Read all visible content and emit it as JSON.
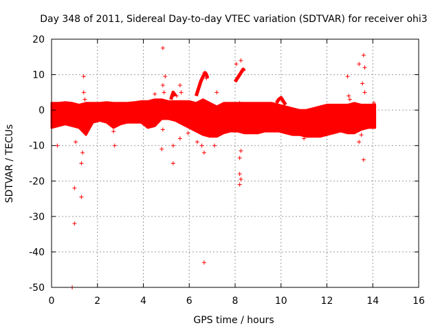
{
  "chart_data": {
    "type": "scatter",
    "title": "Day 348 of 2011, Sidereal Day-to-day VTEC variation (SDTVAR) for receiver ohi3",
    "xlabel": "GPS time / hours",
    "ylabel": "SDTVAR / TECUs",
    "xlim": [
      0,
      16
    ],
    "ylim": [
      -50,
      20
    ],
    "xticks": [
      0,
      2,
      4,
      6,
      8,
      10,
      12,
      14,
      16
    ],
    "yticks": [
      -50,
      -40,
      -30,
      -20,
      -10,
      0,
      10,
      20
    ],
    "grid": true,
    "marker": "+",
    "series_color": "#ff0000",
    "band_x": [
      0.0,
      0.3,
      0.6,
      0.9,
      1.2,
      1.5,
      1.8,
      2.1,
      2.4,
      2.7,
      3.0,
      3.3,
      3.6,
      3.9,
      4.2,
      4.5,
      4.8,
      5.1,
      5.4,
      5.7,
      6.0,
      6.3,
      6.6,
      6.9,
      7.2,
      7.5,
      7.8,
      8.1,
      8.4,
      8.7,
      9.0,
      9.3,
      9.6,
      9.9,
      10.2,
      10.5,
      10.8,
      11.1,
      11.4,
      11.7,
      12.0,
      12.3,
      12.6,
      12.9,
      13.2,
      13.5,
      13.8,
      14.1
    ],
    "band_upper": [
      2.0,
      2.0,
      2.2,
      2.0,
      1.5,
      2.0,
      2.0,
      2.0,
      2.2,
      2.0,
      2.0,
      2.0,
      2.2,
      2.5,
      2.5,
      3.0,
      3.0,
      2.5,
      2.5,
      2.5,
      2.5,
      2.0,
      3.0,
      2.0,
      1.0,
      2.0,
      2.0,
      2.0,
      2.0,
      2.0,
      2.0,
      2.0,
      2.0,
      1.5,
      1.0,
      0.5,
      0.0,
      0.0,
      0.5,
      1.0,
      1.5,
      1.5,
      1.5,
      1.5,
      2.0,
      1.5,
      1.5,
      1.5
    ],
    "band_lower": [
      -5.0,
      -4.5,
      -4.0,
      -4.5,
      -5.0,
      -7.0,
      -3.5,
      -3.0,
      -3.5,
      -5.0,
      -4.0,
      -3.5,
      -3.5,
      -3.5,
      -5.0,
      -4.5,
      -2.5,
      -2.5,
      -3.0,
      -4.0,
      -5.0,
      -6.0,
      -7.0,
      -7.5,
      -7.5,
      -6.5,
      -6.0,
      -6.0,
      -6.5,
      -6.5,
      -6.5,
      -6.0,
      -6.0,
      -6.0,
      -6.5,
      -7.0,
      -7.0,
      -7.5,
      -7.5,
      -7.5,
      -7.0,
      -6.5,
      -6.0,
      -6.5,
      -6.5,
      -5.5,
      -5.0,
      -5.0
    ],
    "spike_points": [
      [
        0.9,
        -50
      ],
      [
        1.0,
        -32
      ],
      [
        1.0,
        -22
      ],
      [
        1.3,
        -24.5
      ],
      [
        1.05,
        -9
      ],
      [
        1.3,
        -15
      ],
      [
        1.35,
        -12
      ],
      [
        1.4,
        9.5
      ],
      [
        1.4,
        5
      ],
      [
        1.45,
        3
      ],
      [
        0.25,
        -10
      ],
      [
        2.75,
        -10
      ],
      [
        2.7,
        -6
      ],
      [
        4.85,
        17.5
      ],
      [
        4.95,
        9.5
      ],
      [
        4.85,
        7
      ],
      [
        4.9,
        5
      ],
      [
        4.5,
        4.5
      ],
      [
        4.8,
        -11
      ],
      [
        4.85,
        -5.5
      ],
      [
        5.3,
        -15
      ],
      [
        5.3,
        -10
      ],
      [
        5.45,
        4
      ],
      [
        5.6,
        7
      ],
      [
        5.65,
        5
      ],
      [
        5.95,
        -6.5
      ],
      [
        5.6,
        -8
      ],
      [
        6.35,
        -9
      ],
      [
        6.55,
        -10
      ],
      [
        6.65,
        -12
      ],
      [
        6.5,
        -2
      ],
      [
        6.65,
        10.5
      ],
      [
        6.75,
        9
      ],
      [
        6.65,
        -43
      ],
      [
        7.1,
        -10
      ],
      [
        7.2,
        5
      ],
      [
        8.05,
        13
      ],
      [
        8.25,
        14
      ],
      [
        8.2,
        -13.5
      ],
      [
        8.25,
        -11.5
      ],
      [
        8.2,
        -18
      ],
      [
        8.25,
        -19.5
      ],
      [
        8.2,
        -21
      ],
      [
        8.2,
        2
      ],
      [
        11.0,
        -8
      ],
      [
        12.85,
        -5
      ],
      [
        12.9,
        9.5
      ],
      [
        12.95,
        4
      ],
      [
        13.0,
        3
      ],
      [
        13.4,
        13
      ],
      [
        13.6,
        15.5
      ],
      [
        13.65,
        12
      ],
      [
        13.55,
        7.5
      ],
      [
        13.65,
        5
      ],
      [
        13.6,
        -14
      ],
      [
        13.4,
        -9
      ],
      [
        13.5,
        -7
      ],
      [
        13.3,
        -4
      ],
      [
        14.05,
        2
      ]
    ],
    "hump_x": [
      6.3,
      6.4,
      6.5,
      6.6,
      6.7,
      6.75,
      6.8,
      8.0,
      8.1,
      8.2,
      8.25,
      8.3,
      8.35,
      8.4
    ],
    "hump_y": [
      4,
      6,
      8,
      9.5,
      10.5,
      10,
      9,
      8,
      9,
      10,
      10.5,
      11,
      11.5,
      11
    ],
    "shoulder_x": [
      5.2,
      5.25,
      5.3,
      5.35,
      5.4,
      9.8,
      9.9,
      10.0,
      10.1,
      10.2
    ],
    "shoulder_y": [
      3,
      4,
      5,
      4.5,
      4,
      2,
      3,
      3.5,
      2.5,
      1.5
    ]
  }
}
